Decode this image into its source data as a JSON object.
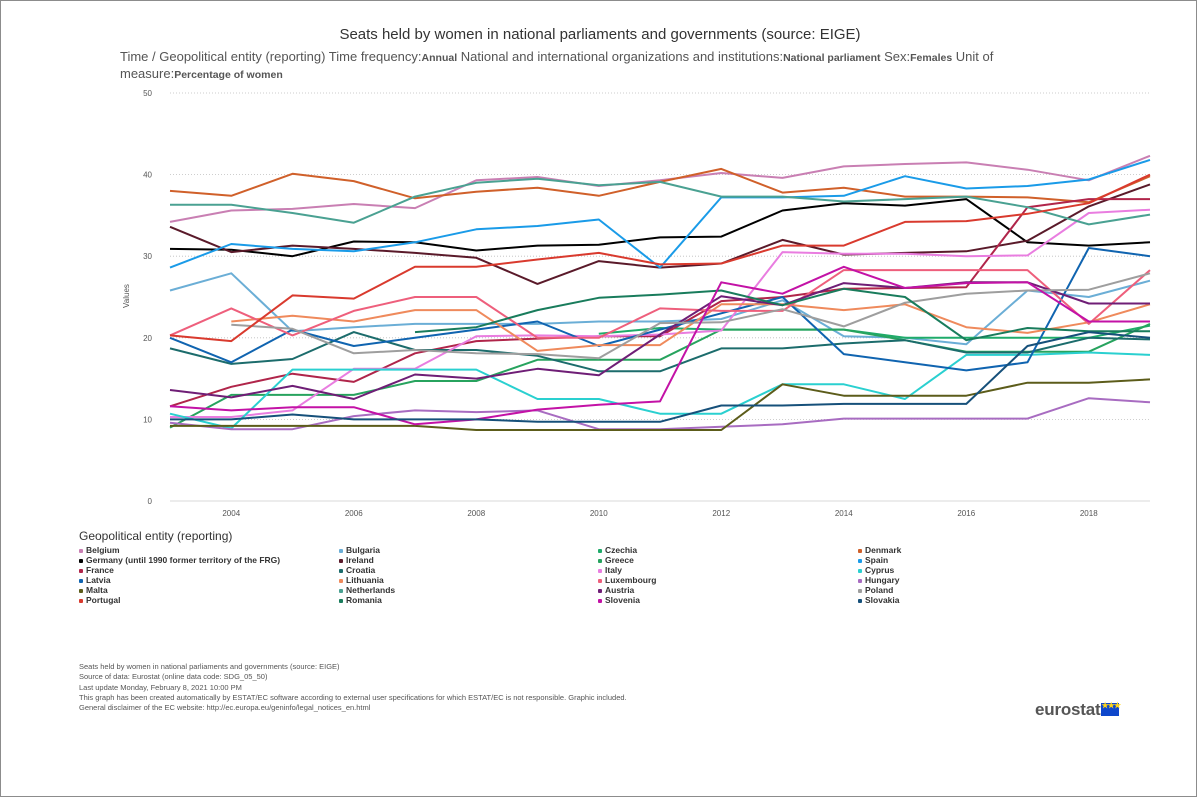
{
  "title": "Seats held by women in national parliaments and governments (source: EIGE)",
  "subtitle": {
    "p1": "Time / Geopolitical entity (reporting)  Time frequency:",
    "v1": "Annual",
    "p2": "  National and international organizations and institutions:",
    "v2": "National parliament",
    "p3": "  Sex:",
    "v3": "Females",
    "p4": "  Unit of measure:",
    "v4": "Percentage of women"
  },
  "legend_title": "Geopolitical entity (reporting)",
  "footer": [
    "Seats held by women in national parliaments and governments (source: EIGE)",
    "Source of data: Eurostat (online data code: SDG_05_50)",
    "Last update Monday, February 8, 2021 10:00 PM",
    "This graph has been created automatically by ESTAT/EC software according to external user specifications for which ESTAT/EC is not responsible. Graphic included.",
    "General disclaimer of the EC website: http://ec.europa.eu/geninfo/legal_notices_en.html"
  ],
  "logo": {
    "text": "eurostat",
    "flag_stars": "★★★"
  },
  "chart_data": {
    "type": "line",
    "ylabel": "Values",
    "xlabel": "",
    "ylim": [
      0,
      50
    ],
    "yticks": [
      "0",
      "10",
      "20",
      "30",
      "40",
      "50"
    ],
    "xticks": [
      "2004",
      "2006",
      "2008",
      "2010",
      "2012",
      "2014",
      "2016",
      "2018"
    ],
    "x": [
      2003,
      2004,
      2005,
      2006,
      2007,
      2008,
      2009,
      2010,
      2011,
      2012,
      2013,
      2014,
      2015,
      2016,
      2017,
      2018,
      2019
    ],
    "grid": "horizontal dotted",
    "legend_position": "bottom",
    "series": [
      {
        "name": "Belgium",
        "color": "#c97fb3",
        "values": [
          34.2,
          35.6,
          35.8,
          36.4,
          35.9,
          39.3,
          39.7,
          38.6,
          39.3,
          40.2,
          39.6,
          41.0,
          41.3,
          41.5,
          40.6,
          39.3,
          42.3
        ]
      },
      {
        "name": "Bulgaria",
        "color": "#6baed6",
        "values": [
          25.8,
          27.9,
          20.8,
          21.3,
          21.7,
          21.7,
          21.7,
          22.0,
          22.0,
          22.3,
          24.6,
          20.2,
          20.0,
          19.2,
          25.8,
          25.0,
          27.0
        ]
      },
      {
        "name": "Czechia",
        "color": "#1fab6a",
        "values": [
          null,
          null,
          null,
          null,
          null,
          null,
          null,
          20.5,
          21.2,
          21.0,
          21.0,
          21.0,
          20.0,
          20.0,
          20.0,
          20.0,
          21.5
        ]
      },
      {
        "name": "Denmark",
        "color": "#d0602a",
        "values": [
          38.0,
          37.4,
          40.1,
          39.2,
          37.1,
          37.9,
          38.4,
          37.4,
          39.1,
          40.7,
          37.8,
          38.4,
          37.3,
          37.3,
          37.2,
          36.6,
          39.8
        ]
      },
      {
        "name": "Germany (until 1990 former territory of the FRG)",
        "color": "#000000",
        "values": [
          30.9,
          30.8,
          30.0,
          31.8,
          31.7,
          30.7,
          31.3,
          31.4,
          32.3,
          32.4,
          35.6,
          36.5,
          36.2,
          37.0,
          31.7,
          31.3,
          31.7
        ]
      },
      {
        "name": "Ireland",
        "color": "#5a1a2a",
        "values": [
          33.6,
          30.5,
          31.3,
          30.9,
          30.4,
          29.8,
          26.6,
          29.4,
          28.6,
          29.1,
          32.0,
          30.2,
          30.4,
          30.6,
          31.9,
          36.1,
          38.8
        ]
      },
      {
        "name": "Greece",
        "color": "#27a35e",
        "values": [
          9.0,
          13.0,
          13.0,
          13.0,
          14.7,
          14.7,
          17.3,
          17.3,
          17.3,
          21.0,
          21.0,
          21.0,
          19.7,
          18.3,
          18.3,
          18.3,
          21.7
        ]
      },
      {
        "name": "Spain",
        "color": "#1a9be8",
        "values": [
          28.6,
          31.5,
          30.9,
          30.6,
          31.7,
          33.3,
          33.7,
          34.5,
          28.6,
          37.2,
          37.2,
          37.4,
          39.8,
          38.3,
          38.6,
          39.4,
          41.8
        ]
      },
      {
        "name": "France",
        "color": "#b0254a",
        "values": [
          11.6,
          14.0,
          15.6,
          14.6,
          18.1,
          19.6,
          19.9,
          20.2,
          20.2,
          24.5,
          25.0,
          26.0,
          26.1,
          26.2,
          36.0,
          37.0,
          37.0
        ]
      },
      {
        "name": "Croatia",
        "color": "#1c6c6c",
        "values": [
          18.7,
          16.8,
          17.4,
          20.7,
          18.5,
          18.5,
          17.8,
          15.9,
          15.9,
          18.7,
          18.7,
          19.3,
          19.7,
          18.2,
          18.2,
          20.0,
          19.8
        ]
      },
      {
        "name": "Italy",
        "color": "#e97de0",
        "values": [
          10.3,
          10.3,
          11.1,
          16.2,
          16.2,
          20.2,
          20.3,
          20.2,
          20.4,
          20.9,
          30.5,
          30.3,
          30.3,
          30.0,
          30.1,
          35.3,
          35.7
        ]
      },
      {
        "name": "Cyprus",
        "color": "#2ad0d0",
        "values": [
          10.7,
          8.9,
          16.1,
          16.1,
          16.1,
          16.1,
          12.5,
          12.5,
          10.7,
          10.7,
          14.3,
          14.3,
          12.5,
          17.9,
          17.9,
          18.2,
          17.9
        ]
      },
      {
        "name": "Latvia",
        "color": "#1064b0",
        "values": [
          20.0,
          17.0,
          21.0,
          19.0,
          20.0,
          21.0,
          22.0,
          19.0,
          21.0,
          23.0,
          25.0,
          18.0,
          17.0,
          16.0,
          17.0,
          31.0,
          30.0
        ]
      },
      {
        "name": "Lithuania",
        "color": "#ef8a5c",
        "values": [
          null,
          22.0,
          22.7,
          22.0,
          23.4,
          23.4,
          18.4,
          19.1,
          19.1,
          24.1,
          24.1,
          23.4,
          24.1,
          21.3,
          20.6,
          21.9,
          24.1
        ]
      },
      {
        "name": "Luxembourg",
        "color": "#ee5f7c",
        "values": [
          20.3,
          23.6,
          20.3,
          23.3,
          25.0,
          25.0,
          20.0,
          20.0,
          23.6,
          23.3,
          23.3,
          28.3,
          28.3,
          28.3,
          28.3,
          21.7,
          28.3
        ]
      },
      {
        "name": "Hungary",
        "color": "#a86cc1",
        "values": [
          9.6,
          8.8,
          8.8,
          10.4,
          11.1,
          10.9,
          11.1,
          8.8,
          8.8,
          9.1,
          9.4,
          10.1,
          10.1,
          10.1,
          10.1,
          12.6,
          12.1
        ]
      },
      {
        "name": "Malta",
        "color": "#5c5c1a",
        "values": [
          9.2,
          9.2,
          9.2,
          9.2,
          9.2,
          8.7,
          8.7,
          8.7,
          8.7,
          8.7,
          14.3,
          12.9,
          12.9,
          12.9,
          14.5,
          14.5,
          14.9
        ]
      },
      {
        "name": "Netherlands",
        "color": "#4aa192",
        "values": [
          36.3,
          36.3,
          35.3,
          34.1,
          37.3,
          39.0,
          39.5,
          38.7,
          39.1,
          37.3,
          37.3,
          36.7,
          37.0,
          37.3,
          36.0,
          33.9,
          35.1
        ]
      },
      {
        "name": "Austria",
        "color": "#6f1e76",
        "values": [
          13.6,
          12.7,
          14.1,
          12.5,
          15.5,
          15.0,
          16.2,
          15.4,
          20.4,
          25.1,
          24.0,
          26.7,
          26.1,
          26.8,
          26.8,
          24.2,
          24.2
        ]
      },
      {
        "name": "Poland",
        "color": "#9e9e9e",
        "values": [
          null,
          21.6,
          21.1,
          18.1,
          18.5,
          18.1,
          18.0,
          17.5,
          21.8,
          21.9,
          23.5,
          21.4,
          24.3,
          25.4,
          25.8,
          25.9,
          27.9
        ]
      },
      {
        "name": "Portugal",
        "color": "#d93a2e",
        "values": [
          20.3,
          19.6,
          25.2,
          24.8,
          28.7,
          28.7,
          29.6,
          30.4,
          29.0,
          29.1,
          31.3,
          31.3,
          34.2,
          34.3,
          35.2,
          36.5,
          40.0
        ]
      },
      {
        "name": "Romania",
        "color": "#197c5c",
        "values": [
          null,
          null,
          null,
          null,
          20.7,
          21.3,
          23.4,
          24.9,
          25.3,
          25.8,
          24.0,
          26.0,
          25.0,
          19.7,
          21.2,
          20.8,
          20.8
        ]
      },
      {
        "name": "Slovenia",
        "color": "#c312a6",
        "values": [
          11.6,
          11.1,
          11.5,
          11.5,
          9.4,
          10.0,
          11.2,
          11.8,
          12.2,
          26.8,
          25.4,
          28.7,
          26.1,
          26.7,
          26.8,
          22.0,
          22.0
        ]
      },
      {
        "name": "Slovakia",
        "color": "#16507a",
        "values": [
          10.0,
          10.0,
          10.6,
          10.0,
          10.0,
          10.0,
          9.7,
          9.7,
          9.7,
          11.7,
          11.7,
          11.9,
          11.9,
          11.9,
          19.0,
          20.7,
          20.0
        ]
      }
    ]
  }
}
